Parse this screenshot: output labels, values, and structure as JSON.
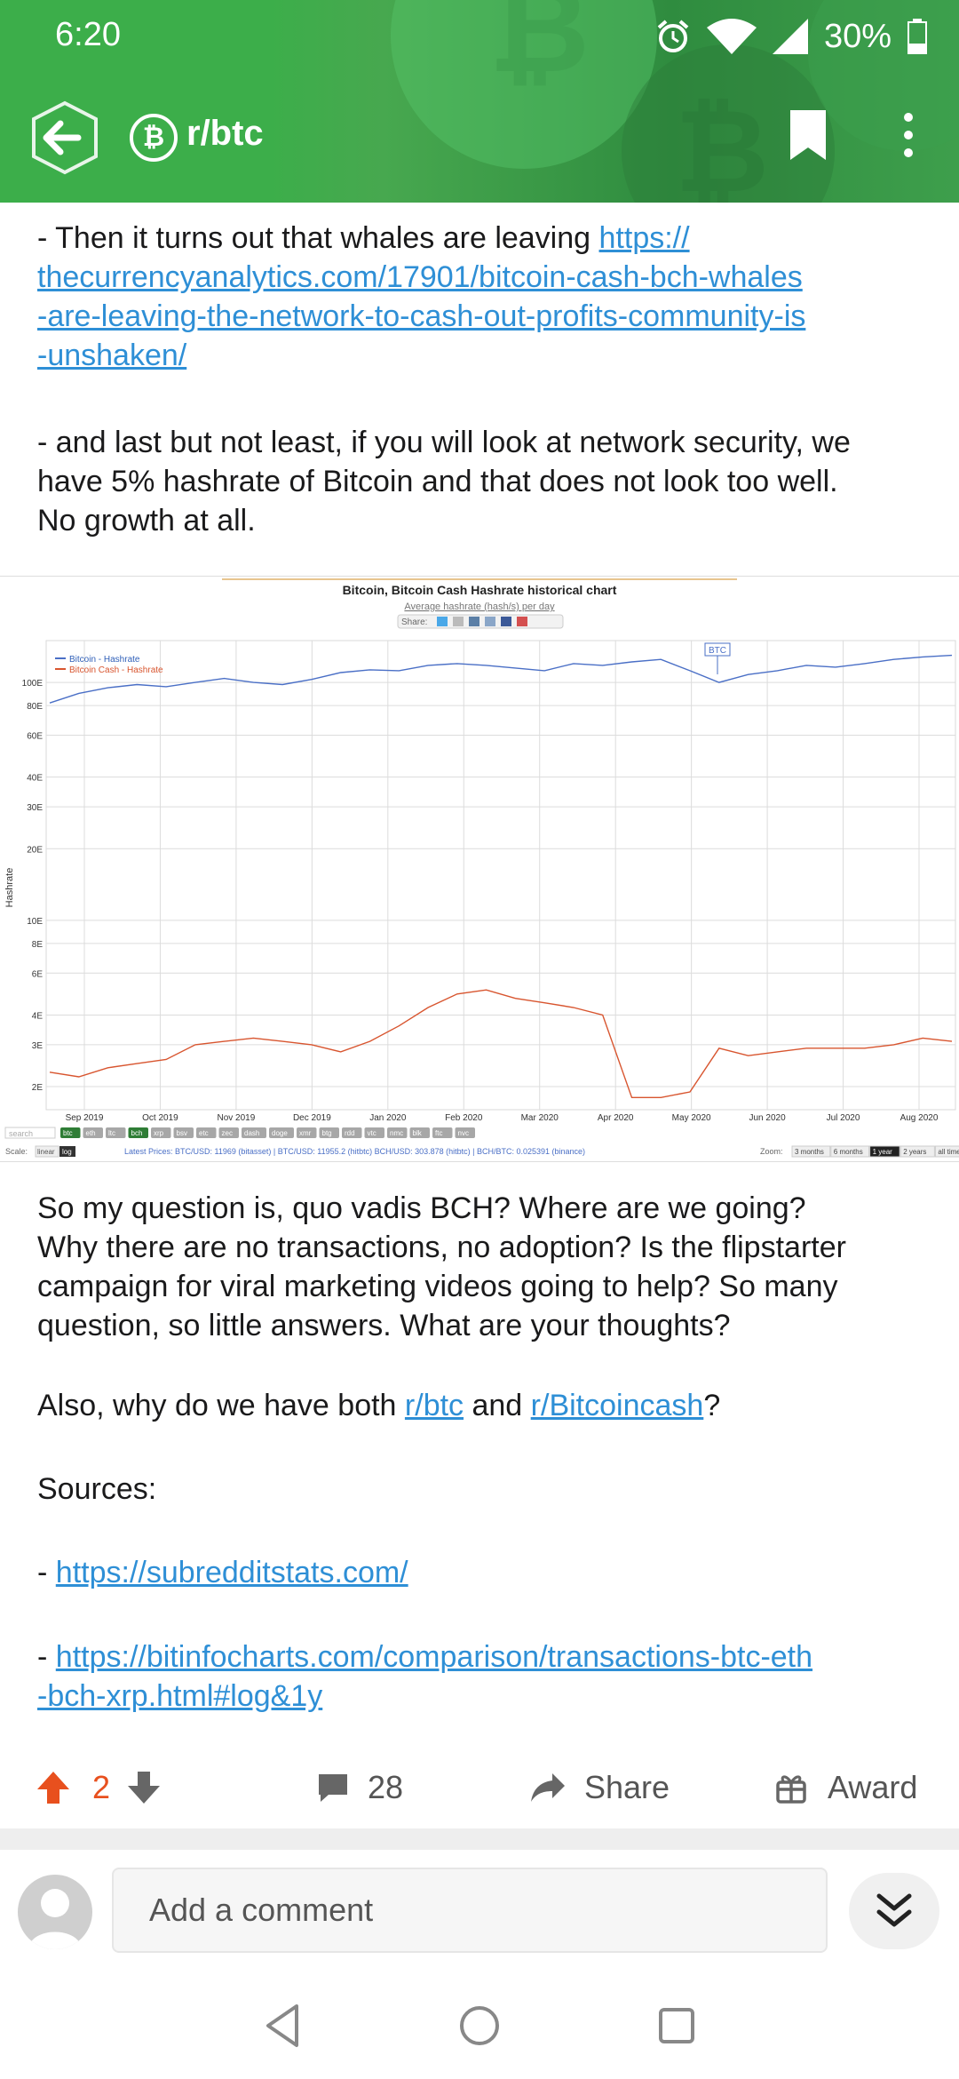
{
  "status_bar": {
    "time": "6:20",
    "battery": "30%"
  },
  "header": {
    "subreddit": "r/btc",
    "subreddit_icon": "bitcoin-cash-icon"
  },
  "post": {
    "para1_text": "- Then it turns out that whales are leaving ",
    "para1_link_l1": "https://",
    "para1_link_l2": "thecurrencyanalytics.com/17901/bitcoin-cash-bch-whales",
    "para1_link_l3": "-are-leaving-the-network-to-cash-out-profits-community-is",
    "para1_link_l4": "-unshaken/",
    "para2_l1": "- and last but not least, if you will look at network security, we",
    "para2_l2": "have 5% hashrate of Bitcoin and that does not look too well.",
    "para2_l3": "No growth at all.",
    "para3_l1": "So my question is, quo vadis BCH? Where are we going?",
    "para3_l2": "Why there are no transactions, no adoption? Is the flipstarter",
    "para3_l3": "campaign for viral marketing videos going to help? So many",
    "para3_l4": "question, so little answers. What are your thoughts?",
    "para4_a": "Also, why do we have both ",
    "para4_link1": "r/btc",
    "para4_b": " and ",
    "para4_link2": "r/Bitcoincash",
    "para4_c": "?",
    "sources_label": "Sources:",
    "source1_dash": "- ",
    "source1_link": "https://subredditstats.com/",
    "source2_dash": "- ",
    "source2_link_l1": "https://bitinfocharts.com/comparison/transactions-btc-eth",
    "source2_link_l2": "-bch-xrp.html#log&1y"
  },
  "chart_data": {
    "type": "line",
    "title": "Bitcoin, Bitcoin Cash Hashrate historical chart",
    "subtitle": "Average hashrate (hash/s) per day",
    "share_label": "Share:",
    "ylabel": "Hashrate",
    "y_scale": "log",
    "y_ticks": [
      "100E",
      "80E",
      "60E",
      "40E",
      "30E",
      "20E",
      "10E",
      "8E",
      "6E",
      "4E",
      "3E",
      "2E"
    ],
    "y_tick_values": [
      100,
      80,
      60,
      40,
      30,
      20,
      10,
      8,
      6,
      4,
      3,
      2
    ],
    "ylim": [
      1.6,
      140
    ],
    "x_ticks": [
      "Sep 2019",
      "Oct 2019",
      "Nov 2019",
      "Dec 2019",
      "Jan 2020",
      "Feb 2020",
      "Mar 2020",
      "Apr 2020",
      "May 2020",
      "Jun 2020",
      "Jul 2020",
      "Aug 2020"
    ],
    "legend": [
      "Bitcoin - Hashrate",
      "Bitcoin Cash - Hashrate"
    ],
    "legend_position": "top-left",
    "annotation": "BTC",
    "series": [
      {
        "name": "Bitcoin - Hashrate",
        "color": "#4a6fc6",
        "values": [
          82,
          90,
          95,
          98,
          96,
          100,
          104,
          100,
          98,
          103,
          110,
          113,
          112,
          118,
          120,
          118,
          115,
          112,
          120,
          118,
          122,
          125,
          112,
          100,
          108,
          112,
          118,
          116,
          120,
          125,
          128,
          130
        ]
      },
      {
        "name": "Bitcoin Cash - Hashrate",
        "color": "#d8552f",
        "values": [
          2.3,
          2.2,
          2.4,
          2.5,
          2.6,
          3.0,
          3.1,
          3.2,
          3.1,
          3.0,
          2.8,
          3.1,
          3.6,
          4.3,
          4.9,
          5.1,
          4.7,
          4.5,
          4.3,
          4.0,
          1.8,
          1.8,
          1.9,
          2.9,
          2.7,
          2.8,
          2.9,
          2.9,
          2.9,
          3.0,
          3.2,
          3.1
        ]
      }
    ],
    "footer_scale": "Scale:",
    "footer_linear": "linear",
    "footer_log": "log",
    "footer_search": "search",
    "footer_prices": "Latest Prices: BTC/USD: 11969 (bitasset) | BTC/USD: 11955.2 (hitbtc) BCH/USD: 303.878 (hitbtc) | BCH/BTC: 0.025391 (binance)",
    "footer_zoom": "Zoom:",
    "zoom_options": [
      "3 months",
      "6 months",
      "1 year",
      "2 years",
      "all time"
    ],
    "zoom_selected": "1 year",
    "coin_tags": [
      "btc",
      "eth",
      "ltc",
      "bch",
      "xrp",
      "bsv",
      "etc",
      "zec",
      "dash",
      "doge",
      "xmr",
      "btg",
      "rdd",
      "vtc",
      "nmc",
      "blk",
      "ftc",
      "nvc"
    ]
  },
  "actions": {
    "votes": "2",
    "comments": "28",
    "share": "Share",
    "award": "Award"
  },
  "comment_bar": {
    "placeholder": "Add a comment"
  },
  "colors": {
    "header_green": "#3cae4a",
    "upvote_orange": "#e8501e",
    "link_blue": "#2e8fd6"
  }
}
